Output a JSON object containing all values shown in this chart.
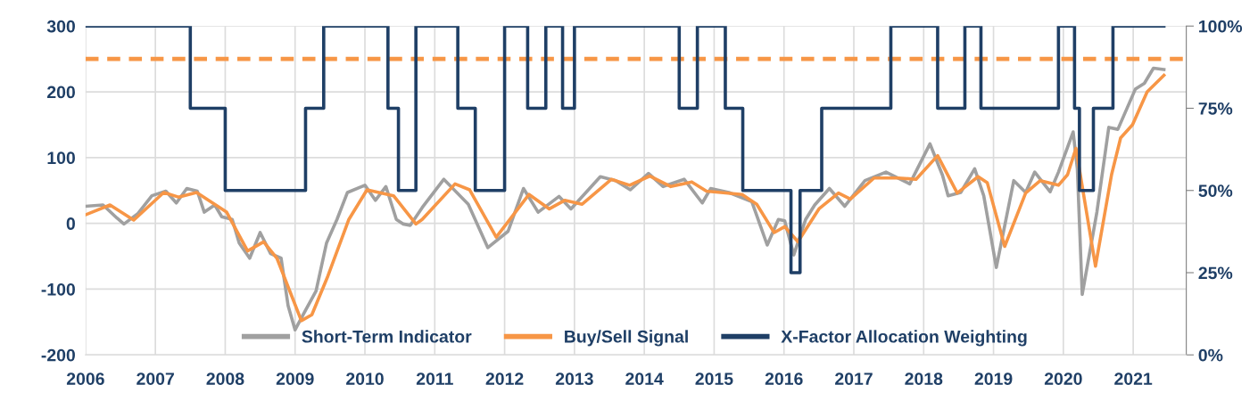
{
  "chart_data": {
    "type": "line",
    "xlim": [
      2006,
      2021.76
    ],
    "xticks": [
      2006,
      2007,
      2008,
      2009,
      2010,
      2011,
      2012,
      2013,
      2014,
      2015,
      2016,
      2017,
      2018,
      2019,
      2020,
      2021
    ],
    "ylim": [
      -200,
      300
    ],
    "yticks": [
      -200,
      -100,
      0,
      100,
      200,
      300
    ],
    "y2lim": [
      0,
      100
    ],
    "y2ticks": [
      {
        "value": 0,
        "label": "0%"
      },
      {
        "value": 25,
        "label": "25%"
      },
      {
        "value": 50,
        "label": "50%"
      },
      {
        "value": 75,
        "label": "75%"
      },
      {
        "value": 100,
        "label": "100%"
      }
    ],
    "grid": true,
    "legend": "bottom",
    "line_style": "solid",
    "marker": "none",
    "ref_lines": [
      {
        "axis": "y",
        "value": 250,
        "color": "#f79646",
        "line_style": "dashed"
      }
    ],
    "series": [
      {
        "name": "Short-Term Indicator",
        "color": "#a0a0a0",
        "x": [
          2006.0,
          2006.25,
          2006.45,
          2006.55,
          2006.75,
          2006.95,
          2007.15,
          2007.3,
          2007.45,
          2007.6,
          2007.7,
          2007.85,
          2007.95,
          2008.1,
          2008.2,
          2008.35,
          2008.5,
          2008.65,
          2008.8,
          2008.9,
          2009.0,
          2009.15,
          2009.3,
          2009.45,
          2009.6,
          2009.75,
          2010.0,
          2010.15,
          2010.3,
          2010.45,
          2010.55,
          2010.65,
          2010.82,
          2011.13,
          2011.48,
          2011.76,
          2012.05,
          2012.27,
          2012.48,
          2012.78,
          2012.95,
          2013.37,
          2013.59,
          2013.8,
          2014.06,
          2014.27,
          2014.57,
          2014.83,
          2014.95,
          2015.21,
          2015.54,
          2015.76,
          2015.92,
          2016.01,
          2016.14,
          2016.31,
          2016.44,
          2016.65,
          2016.87,
          2017.16,
          2017.46,
          2017.8,
          2018.09,
          2018.27,
          2018.35,
          2018.53,
          2018.73,
          2018.86,
          2019.04,
          2019.29,
          2019.46,
          2019.59,
          2019.81,
          2019.93,
          2020.14,
          2020.2,
          2020.27,
          2020.48,
          2020.65,
          2020.78,
          2021.03,
          2021.16,
          2021.29,
          2021.44
        ],
        "values": [
          26,
          28,
          8,
          -1,
          15,
          42,
          49,
          31,
          53,
          49,
          17,
          28,
          10,
          6,
          -30,
          -53,
          -14,
          -46,
          -53,
          -125,
          -162,
          -132,
          -103,
          -30,
          6,
          47,
          58,
          35,
          56,
          6,
          -1,
          -3,
          24,
          67,
          29,
          -37,
          -12,
          53,
          17,
          41,
          22,
          71,
          65,
          51,
          76,
          56,
          67,
          31,
          53,
          47,
          33,
          -33,
          6,
          4,
          -48,
          6,
          28,
          53,
          26,
          65,
          78,
          60,
          121,
          73,
          42,
          47,
          83,
          42,
          -67,
          65,
          47,
          78,
          48,
          78,
          139,
          83,
          -108,
          17,
          146,
          143,
          204,
          213,
          236,
          234
        ]
      },
      {
        "name": "Buy/Sell Signal",
        "color": "#f79646",
        "x": [
          2006.0,
          2006.35,
          2006.69,
          2007.12,
          2007.33,
          2007.59,
          2008.02,
          2008.32,
          2008.55,
          2008.74,
          2009.09,
          2009.24,
          2009.47,
          2009.77,
          2010.03,
          2010.41,
          2010.73,
          2010.82,
          2011.29,
          2011.5,
          2011.88,
          2012.35,
          2012.64,
          2012.86,
          2013.11,
          2013.53,
          2013.79,
          2014.08,
          2014.38,
          2014.68,
          2014.89,
          2015.4,
          2015.61,
          2015.86,
          2016.01,
          2016.2,
          2016.5,
          2016.78,
          2016.95,
          2017.29,
          2017.63,
          2017.89,
          2018.2,
          2018.48,
          2018.78,
          2018.91,
          2019.16,
          2019.46,
          2019.67,
          2019.93,
          2020.06,
          2020.18,
          2020.46,
          2020.69,
          2020.82,
          2020.99,
          2021.2,
          2021.44
        ],
        "values": [
          13,
          28,
          5,
          47,
          40,
          47,
          17,
          -42,
          -28,
          -53,
          -148,
          -139,
          -80,
          6,
          51,
          42,
          -1,
          6,
          60,
          51,
          -21,
          44,
          22,
          35,
          29,
          67,
          58,
          72,
          56,
          63,
          49,
          44,
          29,
          -14,
          -5,
          -28,
          22,
          46,
          37,
          69,
          69,
          67,
          103,
          46,
          71,
          62,
          -35,
          46,
          65,
          58,
          74,
          114,
          -65,
          74,
          130,
          150,
          200,
          225
        ]
      },
      {
        "name": "X-Factor Allocation Weighting",
        "color": "#1f3f66",
        "type": "step",
        "axis": "y2",
        "x": [
          2006.0,
          2007.5,
          2008.0,
          2009.15,
          2009.41,
          2010.33,
          2010.48,
          2010.73,
          2011.33,
          2011.58,
          2012.0,
          2012.33,
          2012.59,
          2012.83,
          2013.0,
          2014.5,
          2014.76,
          2015.16,
          2015.41,
          2016.1,
          2016.23,
          2016.54,
          2017.53,
          2018.2,
          2018.59,
          2018.82,
          2019.93,
          2020.16,
          2020.23,
          2020.43,
          2020.71,
          2021.44
        ],
        "values": [
          100,
          75,
          50,
          75,
          100,
          75,
          50,
          100,
          75,
          50,
          100,
          75,
          100,
          75,
          100,
          75,
          100,
          75,
          50,
          25,
          50,
          75,
          100,
          75,
          100,
          75,
          100,
          75,
          50,
          75,
          100,
          100
        ]
      }
    ]
  }
}
